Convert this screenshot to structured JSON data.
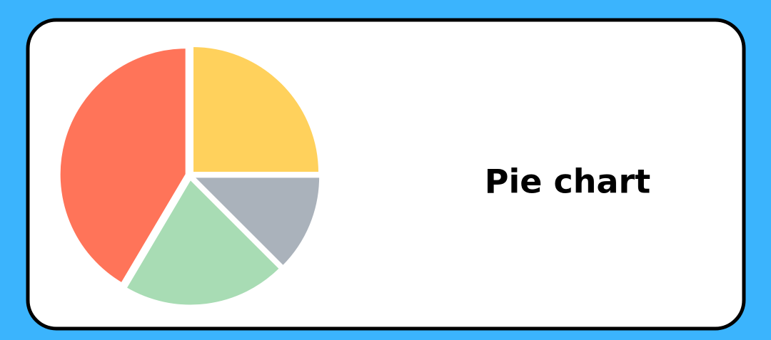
{
  "chart_data": {
    "type": "pie",
    "title": "Pie chart",
    "values": [
      25,
      12.5,
      21,
      41.5
    ],
    "colors": [
      "#ffd15c",
      "#aab2bb",
      "#a8dcb4",
      "#ff7459"
    ]
  }
}
